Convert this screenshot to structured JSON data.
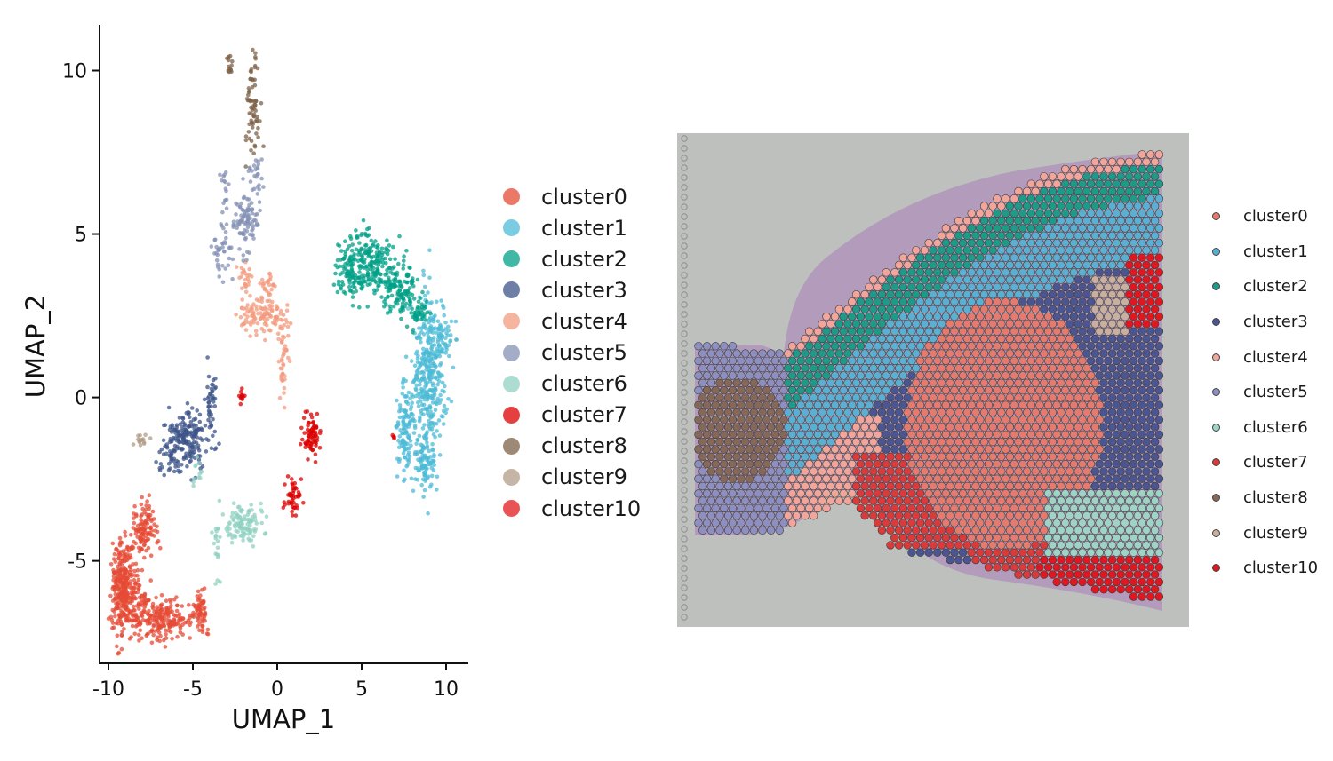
{
  "chart_data": [
    {
      "type": "scatter",
      "title": "",
      "xlabel": "UMAP_1",
      "ylabel": "UMAP_2",
      "xlim": [
        -10.4,
        11.3
      ],
      "ylim": [
        -8.0,
        11.4
      ],
      "x_ticks": [
        -10,
        -5,
        0,
        5,
        10
      ],
      "x_tick_labels": [
        "-10",
        "-5",
        "0",
        "5",
        "10"
      ],
      "y_ticks": [
        -5,
        0,
        5,
        10
      ],
      "y_tick_labels": [
        "-5",
        "0",
        "5",
        "10"
      ],
      "grid": false,
      "legend_position": "right",
      "series": [
        {
          "name": "cluster0",
          "color": "#E64B35",
          "regions": [
            [
              -9.2,
              -5.8,
              0.4,
              0.9,
              260
            ],
            [
              -7.8,
              -4.0,
              0.5,
              0.5,
              110
            ],
            [
              -6.6,
              -6.8,
              1.0,
              0.4,
              170
            ],
            [
              -4.6,
              -6.6,
              0.3,
              0.4,
              60
            ],
            [
              -8.4,
              -6.3,
              0.7,
              0.6,
              120
            ]
          ]
        },
        {
          "name": "cluster1",
          "color": "#4DBBD5",
          "regions": [
            [
              9.0,
              0.6,
              0.6,
              1.6,
              320
            ],
            [
              7.6,
              -1.0,
              0.4,
              0.9,
              120
            ],
            [
              9.7,
              1.8,
              0.5,
              0.4,
              60
            ],
            [
              8.8,
              -2.0,
              0.4,
              0.5,
              80
            ]
          ]
        },
        {
          "name": "cluster2",
          "color": "#00A087",
          "regions": [
            [
              5.5,
              4.1,
              1.0,
              0.6,
              200
            ],
            [
              7.2,
              3.3,
              0.7,
              0.45,
              120
            ],
            [
              4.2,
              3.9,
              0.6,
              0.5,
              70
            ],
            [
              8.4,
              2.6,
              0.4,
              0.25,
              40
            ]
          ]
        },
        {
          "name": "cluster3",
          "color": "#3C5488",
          "regions": [
            [
              -5.2,
              -1.2,
              0.8,
              0.6,
              170
            ],
            [
              -3.9,
              -0.1,
              0.18,
              0.6,
              35
            ],
            [
              -6.3,
              -1.7,
              0.4,
              0.4,
              40
            ]
          ]
        },
        {
          "name": "cluster4",
          "color": "#F39B7F",
          "regions": [
            [
              -0.9,
              2.5,
              0.9,
              0.35,
              110
            ],
            [
              0.4,
              1.1,
              0.25,
              0.8,
              40
            ],
            [
              -2.0,
              3.6,
              0.3,
              0.4,
              25
            ],
            [
              -0.6,
              3.5,
              0.3,
              0.25,
              25
            ]
          ]
        },
        {
          "name": "cluster5",
          "color": "#8491B4",
          "regions": [
            [
              -1.8,
              5.4,
              0.5,
              0.6,
              90
            ],
            [
              -3.2,
              4.6,
              0.35,
              0.5,
              40
            ],
            [
              -1.3,
              6.8,
              0.3,
              0.4,
              25
            ],
            [
              -3.1,
              6.5,
              0.15,
              0.4,
              15
            ]
          ]
        },
        {
          "name": "cluster6",
          "color": "#91D1C2",
          "regions": [
            [
              -2.0,
              -3.9,
              0.7,
              0.4,
              110
            ],
            [
              -3.6,
              -4.5,
              0.15,
              0.7,
              18
            ],
            [
              -4.6,
              -2.4,
              0.3,
              0.3,
              12
            ]
          ]
        },
        {
          "name": "cluster7",
          "color": "#DC0000",
          "regions": [
            [
              2.0,
              -1.2,
              0.35,
              0.4,
              70
            ],
            [
              0.9,
              -3.1,
              0.3,
              0.35,
              45
            ],
            [
              -2.1,
              0.0,
              0.12,
              0.2,
              12
            ],
            [
              6.9,
              -1.2,
              0.05,
              0.1,
              4
            ]
          ]
        },
        {
          "name": "cluster8",
          "color": "#7E6148",
          "regions": [
            [
              -1.5,
              8.7,
              0.3,
              1.0,
              70
            ],
            [
              -2.8,
              10.2,
              0.2,
              0.25,
              15
            ]
          ]
        },
        {
          "name": "cluster9",
          "color": "#B09C85",
          "regions": [
            [
              -8.0,
              -1.3,
              0.25,
              0.15,
              15
            ]
          ]
        },
        {
          "name": "cluster10",
          "color": "#E31A1C",
          "regions": []
        }
      ]
    },
    {
      "type": "scatter",
      "title": "",
      "xlabel": "",
      "ylabel": "",
      "legend_position": "right",
      "background": "tissue section image",
      "series": [
        {
          "name": "cluster0",
          "color": "#E57A6E"
        },
        {
          "name": "cluster1",
          "color": "#5AAFD2"
        },
        {
          "name": "cluster2",
          "color": "#1E9A88"
        },
        {
          "name": "cluster3",
          "color": "#4A5592"
        },
        {
          "name": "cluster4",
          "color": "#F2A59A"
        },
        {
          "name": "cluster5",
          "color": "#8C8FBF"
        },
        {
          "name": "cluster6",
          "color": "#9FD3C6"
        },
        {
          "name": "cluster7",
          "color": "#D93A3A"
        },
        {
          "name": "cluster8",
          "color": "#866859"
        },
        {
          "name": "cluster9",
          "color": "#C9AFA0"
        },
        {
          "name": "cluster10",
          "color": "#E0171E"
        }
      ]
    }
  ],
  "legend_left": [
    "cluster0",
    "cluster1",
    "cluster2",
    "cluster3",
    "cluster4",
    "cluster5",
    "cluster6",
    "cluster7",
    "cluster8",
    "cluster9",
    "cluster10"
  ],
  "legend_right": [
    "cluster0",
    "cluster1",
    "cluster2",
    "cluster3",
    "cluster4",
    "cluster5",
    "cluster6",
    "cluster7",
    "cluster8",
    "cluster9",
    "cluster10"
  ]
}
